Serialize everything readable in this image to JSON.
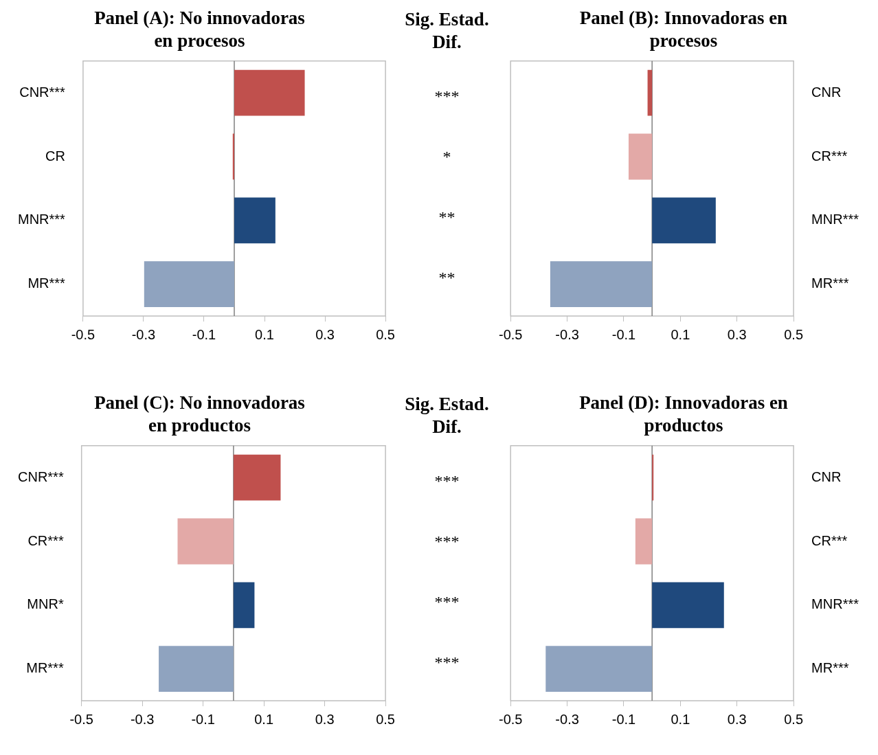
{
  "chart_data": [
    {
      "type": "bar",
      "orientation": "horizontal",
      "title": "Panel (A): No innovadoras en procesos",
      "categories": [
        "CNR***",
        "CR",
        "MNR***",
        "MR***"
      ],
      "values": [
        0.233,
        -0.005,
        0.136,
        -0.298
      ],
      "colors": [
        "#c0504d",
        "#c0504d",
        "#1f497d",
        "#8fa3bf"
      ],
      "xlim": [
        -0.5,
        0.5
      ],
      "xticks": [
        -0.5,
        -0.3,
        -0.1,
        0.1,
        0.3,
        0.5
      ]
    },
    {
      "type": "other",
      "title": "Sig. Estad. Dif.",
      "annotations": [
        "***",
        "*",
        "**",
        "**"
      ]
    },
    {
      "type": "bar",
      "orientation": "horizontal",
      "title": "Panel (B): Innovadoras en procesos",
      "categories": [
        "CNR",
        "CR***",
        "MNR***",
        "MR***"
      ],
      "values": [
        -0.016,
        -0.083,
        0.225,
        -0.36
      ],
      "colors": [
        "#c0504d",
        "#e3a9a7",
        "#1f497d",
        "#8fa3bf"
      ],
      "xlim": [
        -0.5,
        0.5
      ],
      "xticks": [
        -0.5,
        -0.3,
        -0.1,
        0.1,
        0.3,
        0.5
      ]
    },
    {
      "type": "bar",
      "orientation": "horizontal",
      "title": "Panel (C): No innovadoras en productos",
      "categories": [
        "CNR***",
        "CR***",
        "MNR*",
        "MR***"
      ],
      "values": [
        0.155,
        -0.184,
        0.069,
        -0.246
      ],
      "colors": [
        "#c0504d",
        "#e3a9a7",
        "#1f497d",
        "#8fa3bf"
      ],
      "xlim": [
        -0.5,
        0.5
      ],
      "xticks": [
        -0.5,
        -0.3,
        -0.1,
        0.1,
        0.3,
        0.5
      ]
    },
    {
      "type": "other",
      "title": "Sig. Estad. Dif.",
      "annotations": [
        "***",
        "***",
        "***",
        "***"
      ]
    },
    {
      "type": "bar",
      "orientation": "horizontal",
      "title": "Panel (D): Innovadoras en productos",
      "categories": [
        "CNR",
        "CR***",
        "MNR***",
        "MR***"
      ],
      "values": [
        0.005,
        -0.059,
        0.254,
        -0.376
      ],
      "colors": [
        "#c0504d",
        "#e3a9a7",
        "#1f497d",
        "#8fa3bf"
      ],
      "xlim": [
        -0.5,
        0.5
      ],
      "xticks": [
        -0.5,
        -0.3,
        -0.1,
        0.1,
        0.3,
        0.5
      ]
    }
  ]
}
